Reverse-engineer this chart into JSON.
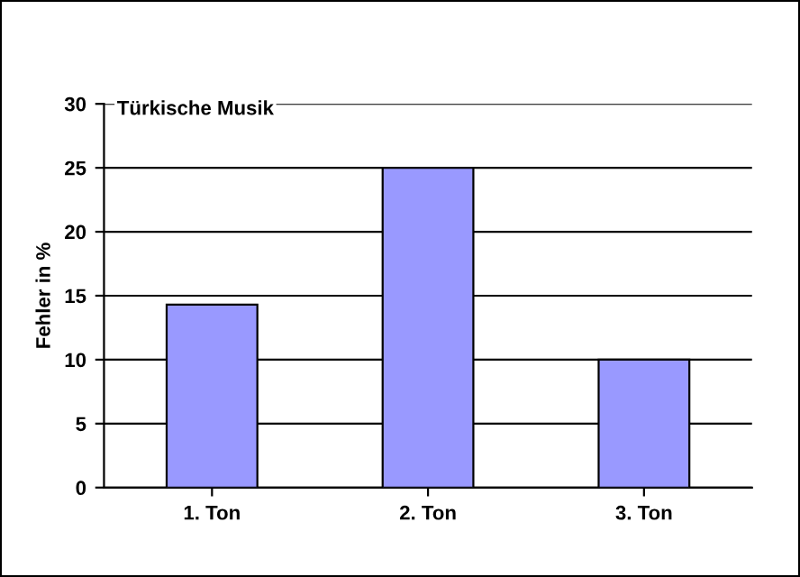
{
  "chart_data": {
    "type": "bar",
    "title": "Türkische Musik",
    "ylabel": "Fehler in %",
    "categories": [
      "1. Ton",
      "2. Ton",
      "3. Ton"
    ],
    "values": [
      14.3,
      25,
      10
    ],
    "color": "#9999ff",
    "ylim": [
      0,
      30
    ],
    "yticks": [
      0,
      5,
      10,
      15,
      20,
      25,
      30
    ],
    "grid": "y",
    "legend": false
  }
}
